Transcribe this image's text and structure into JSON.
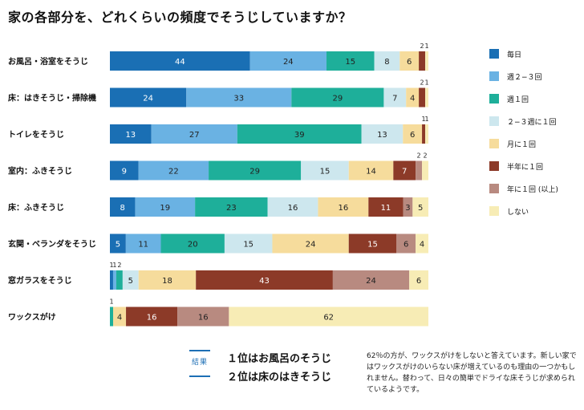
{
  "title": "家の各部分を、どれくらいの頻度でそうじしていますか？",
  "legend": [
    {
      "label": "毎日",
      "color": "#1a6fb4"
    },
    {
      "label": "週２−３回",
      "color": "#6ab2e3"
    },
    {
      "label": "週１回",
      "color": "#1eaf9a"
    },
    {
      "label": "２−３週に１回",
      "color": "#cde7ee"
    },
    {
      "label": "月に１回",
      "color": "#f6dc9c"
    },
    {
      "label": "半年に１回",
      "color": "#8c3a28"
    },
    {
      "label": "年に１回 (以上)",
      "color": "#b88a80"
    },
    {
      "label": "しない",
      "color": "#f7ecb5"
    }
  ],
  "chart_data": {
    "type": "bar",
    "orientation": "horizontal",
    "stacked": true,
    "title": "家の各部分を、どれくらいの頻度でそうじしていますか？",
    "categories": [
      "お風呂・浴室をそうじ",
      "床：はきそうじ・掃除機",
      "トイレをそうじ",
      "室内：ふきそうじ",
      "床：ふきそうじ",
      "玄関・ベランダをそうじ",
      "窓ガラスをそうじ",
      "ワックスがけ"
    ],
    "series": [
      {
        "name": "毎日",
        "values": [
          44,
          24,
          13,
          9,
          8,
          5,
          1,
          0
        ]
      },
      {
        "name": "週２−３回",
        "values": [
          24,
          33,
          27,
          22,
          19,
          11,
          1,
          0
        ]
      },
      {
        "name": "週１回",
        "values": [
          15,
          29,
          39,
          29,
          23,
          20,
          2,
          1
        ]
      },
      {
        "name": "２−３週に１回",
        "values": [
          8,
          7,
          13,
          15,
          16,
          15,
          5,
          0
        ]
      },
      {
        "name": "月に１回",
        "values": [
          6,
          4,
          6,
          14,
          16,
          24,
          18,
          4
        ]
      },
      {
        "name": "半年に１回",
        "values": [
          2,
          2,
          1,
          7,
          11,
          15,
          43,
          16
        ]
      },
      {
        "name": "年に１回 (以上)",
        "values": [
          0,
          0,
          0,
          2,
          3,
          6,
          24,
          16
        ]
      },
      {
        "name": "しない",
        "values": [
          1,
          1,
          1,
          2,
          5,
          4,
          6,
          62
        ]
      }
    ],
    "xlim": [
      0,
      100
    ],
    "grid": false,
    "legend": "right"
  },
  "result": {
    "tag": "結果",
    "line1": "１位はお風呂のそうじ",
    "line2": "２位は床のはきそうじ"
  },
  "note": "62％の方が、ワックスがけをしないと答えています。新しい家ではワックスがけのいらない床が増えているのも理由の一つかもしれません。替わって、日々の簡単でドライな床そうじが求められているようです。"
}
